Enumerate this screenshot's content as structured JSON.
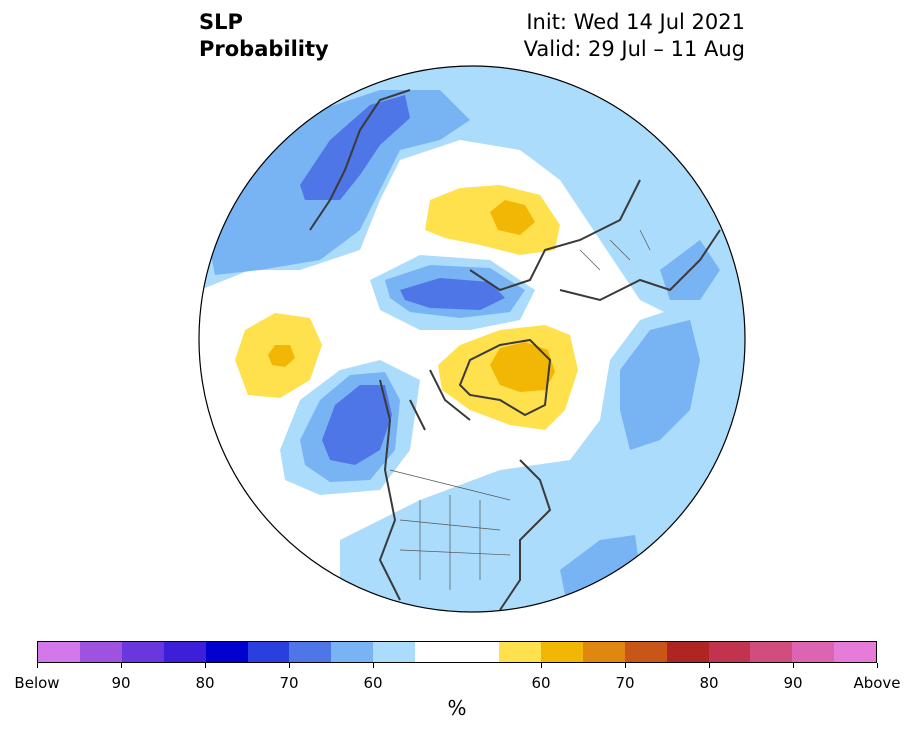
{
  "header": {
    "title_line1": "SLP",
    "title_line2": "Probability",
    "init": "Init: Wed 14 Jul 2021",
    "valid": "Valid: 29 Jul – 11 Aug"
  },
  "map": {
    "projection": "north-polar-stereographic",
    "features": [
      "coastlines",
      "country-borders",
      "us-state-borders"
    ],
    "colors": {
      "below_light": "#abdcfc",
      "below_60": "#78b3f3",
      "below_70": "#4f76e6",
      "normal": "#ffffff",
      "above_light": "#ffe04d",
      "above_60": "#f2b705",
      "above_70": "#e0870f"
    }
  },
  "colorbar": {
    "segments": [
      {
        "side": "below",
        "color": "#d278eb"
      },
      {
        "side": "below",
        "color": "#9f52e0"
      },
      {
        "side": "below",
        "color": "#6a37de"
      },
      {
        "side": "below",
        "color": "#3e1fd9"
      },
      {
        "side": "below",
        "color": "#0000cf"
      },
      {
        "side": "below",
        "color": "#2a3fdf"
      },
      {
        "side": "below",
        "color": "#4f76e6"
      },
      {
        "side": "below",
        "color": "#78b3f3"
      },
      {
        "side": "below",
        "color": "#abdcfc"
      },
      {
        "side": "normal",
        "color": "#ffffff"
      },
      {
        "side": "normal",
        "color": "#ffffff"
      },
      {
        "side": "above",
        "color": "#ffe04d"
      },
      {
        "side": "above",
        "color": "#f2b705"
      },
      {
        "side": "above",
        "color": "#e0870f"
      },
      {
        "side": "above",
        "color": "#c75618"
      },
      {
        "side": "above",
        "color": "#b02424"
      },
      {
        "side": "above",
        "color": "#c2344e"
      },
      {
        "side": "above",
        "color": "#d04d7d"
      },
      {
        "side": "above",
        "color": "#db65b0"
      },
      {
        "side": "above",
        "color": "#e67bda"
      }
    ],
    "tick_labels": [
      "Below",
      "90",
      "80",
      "70",
      "60",
      "60",
      "70",
      "80",
      "90",
      "Above"
    ],
    "unit_label": "%"
  }
}
